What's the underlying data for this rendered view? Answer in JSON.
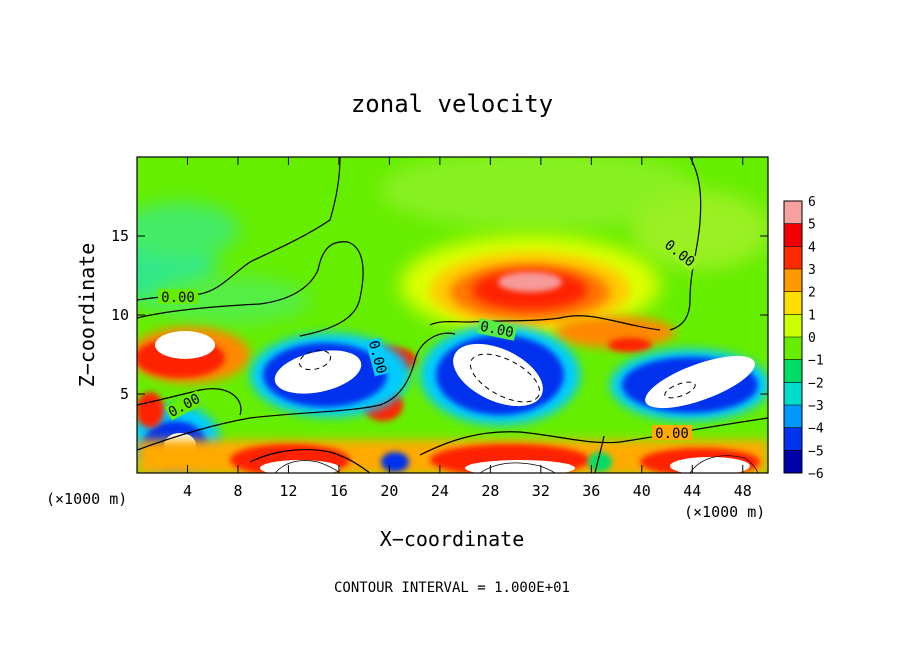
{
  "chart_data": {
    "type": "heatmap",
    "title": "zonal velocity",
    "xlabel": "X−coordinate",
    "ylabel": "Z−coordinate",
    "x_unit": "(×1000 m)",
    "z_unit": "(×1000 m)",
    "xlim": [
      0,
      50
    ],
    "ylim": [
      0,
      20
    ],
    "x_ticks": [
      4,
      8,
      12,
      16,
      20,
      24,
      28,
      32,
      36,
      40,
      44,
      48
    ],
    "x_tick_labels": [
      "4",
      "8",
      "12",
      "16",
      "20",
      "24",
      "28",
      "32",
      "36",
      "40",
      "44",
      "48"
    ],
    "y_ticks": [
      5,
      10,
      15
    ],
    "y_tick_labels": [
      "5",
      "10",
      "15"
    ],
    "colorbar": {
      "levels": [
        6,
        5,
        4,
        3,
        2,
        1,
        0,
        -1,
        -2,
        -3,
        -4,
        -5,
        -6
      ],
      "labels": [
        "6",
        "5",
        "4",
        "3",
        "2",
        "1",
        "0",
        "−1",
        "−2",
        "−3",
        "−4",
        "−5",
        "−6"
      ],
      "colors": [
        "#f7a0a0",
        "#f00000",
        "#ff2a00",
        "#ff9900",
        "#ffdd00",
        "#ccff00",
        "#66ee00",
        "#00dd66",
        "#00ddcc",
        "#0099ff",
        "#0033ee",
        "#0000aa",
        "#8800cc"
      ]
    },
    "background_value_color": "#66ee00",
    "contour_interval_text": "CONTOUR INTERVAL = 1.000E+01",
    "contour_labels": [
      "0.00",
      "0.00",
      "0.00",
      "0.00",
      "0.00",
      "0.00"
    ],
    "features": [
      {
        "kind": "positive_jet",
        "x": 31,
        "z": 11.8,
        "peak": 6
      },
      {
        "kind": "positive_band",
        "x": 39,
        "z": 8.2,
        "peak": 4
      },
      {
        "kind": "negative_core",
        "x": 14.5,
        "z": 7.2,
        "peak": -8
      },
      {
        "kind": "negative_core",
        "x": 30,
        "z": 6.5,
        "peak": -10
      },
      {
        "kind": "negative_core",
        "x": 44.5,
        "z": 6.0,
        "peak": -8
      },
      {
        "kind": "negative_core",
        "x": 3.5,
        "z": 1.5,
        "peak": -6
      },
      {
        "kind": "positive_core",
        "x": 3.5,
        "z": 7.0,
        "peak": 9
      },
      {
        "kind": "positive_core",
        "x": 14,
        "z": 0.6,
        "peak": 8
      },
      {
        "kind": "positive_core",
        "x": 29,
        "z": 0.7,
        "peak": 9
      },
      {
        "kind": "positive_core",
        "x": 45,
        "z": 0.8,
        "peak": 8
      }
    ]
  }
}
